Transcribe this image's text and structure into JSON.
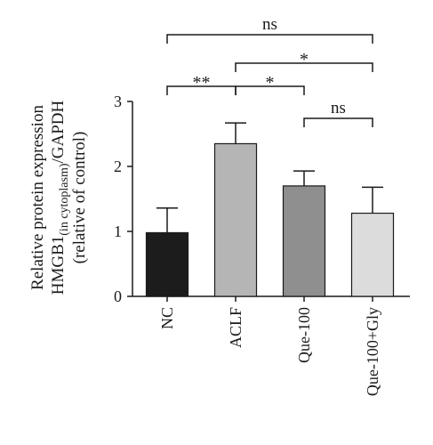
{
  "chart_data": {
    "type": "bar",
    "categories": [
      "NC",
      "ACLF",
      "Que-100",
      "Que-100+Gly"
    ],
    "values": [
      0.98,
      2.35,
      1.7,
      1.28
    ],
    "errors": [
      0.38,
      0.32,
      0.23,
      0.4
    ],
    "bar_colors": [
      "#1c1c1c",
      "#b5b5b5",
      "#8f8f8f",
      "#dcdcdc"
    ],
    "ylabel_lines": {
      "line1": "Relative protein expression",
      "line2_main": "HMGB1",
      "line2_sub": "(in cytoplasm)",
      "line2_end": "/GAPDH",
      "line3": "(relative of control)"
    },
    "yticks": [
      "0",
      "1",
      "2",
      "3"
    ],
    "ylim": [
      0,
      3
    ],
    "significance": [
      {
        "from": 0,
        "to": 1,
        "label": "**"
      },
      {
        "from": 1,
        "to": 2,
        "label": "*"
      },
      {
        "from": 2,
        "to": 3,
        "label": "ns"
      },
      {
        "from": 1,
        "to": 3,
        "label": "*"
      },
      {
        "from": 0,
        "to": 3,
        "label": "ns"
      }
    ]
  }
}
